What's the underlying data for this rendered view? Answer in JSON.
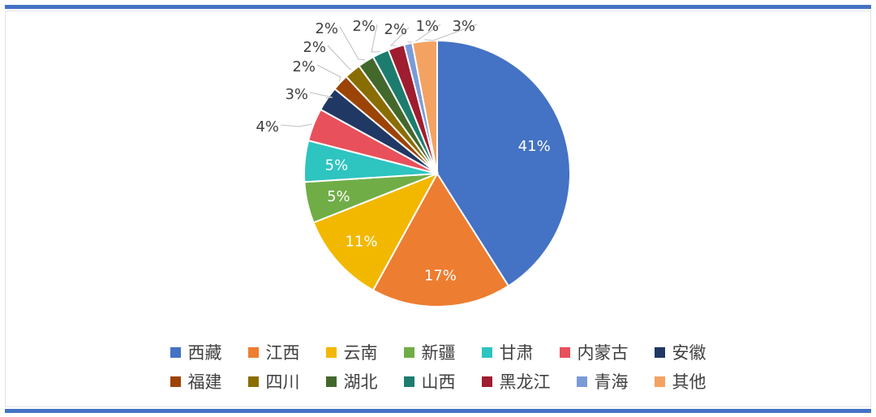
{
  "frame": {
    "color": "#4472c4"
  },
  "chart_data": {
    "type": "pie",
    "title": "",
    "start_angle_deg": 0,
    "direction": "clockwise",
    "label_format": "percent",
    "legend_position": "bottom",
    "slices": [
      {
        "name": "西藏",
        "value": 41,
        "label": "41%",
        "color": "#4472c4",
        "label_inside": true
      },
      {
        "name": "江西",
        "value": 17,
        "label": "17%",
        "color": "#ed7d31",
        "label_inside": true
      },
      {
        "name": "云南",
        "value": 11,
        "label": "11%",
        "color": "#f2b800",
        "label_inside": true
      },
      {
        "name": "新疆",
        "value": 5,
        "label": "5%",
        "color": "#70ad47",
        "label_inside": true
      },
      {
        "name": "甘肃",
        "value": 5,
        "label": "5%",
        "color": "#2ec4c0",
        "label_inside": true
      },
      {
        "name": "内蒙古",
        "value": 4,
        "label": "4%",
        "color": "#e8505b",
        "label_inside": false
      },
      {
        "name": "安徽",
        "value": 3,
        "label": "3%",
        "color": "#203864",
        "label_inside": false
      },
      {
        "name": "福建",
        "value": 2,
        "label": "2%",
        "color": "#9c4406",
        "label_inside": false
      },
      {
        "name": "四川",
        "value": 2,
        "label": "2%",
        "color": "#8a6d00",
        "label_inside": false
      },
      {
        "name": "湖北",
        "value": 2,
        "label": "2%",
        "color": "#43682b",
        "label_inside": false
      },
      {
        "name": "山西",
        "value": 2,
        "label": "2%",
        "color": "#1c7d6e",
        "label_inside": false
      },
      {
        "name": "黑龙江",
        "value": 2,
        "label": "2%",
        "color": "#a01c2f",
        "label_inside": false
      },
      {
        "name": "青海",
        "value": 1,
        "label": "1%",
        "color": "#7b9bd8",
        "label_inside": false
      },
      {
        "name": "其他",
        "value": 3,
        "label": "3%",
        "color": "#f4a261",
        "label_inside": false
      }
    ]
  }
}
